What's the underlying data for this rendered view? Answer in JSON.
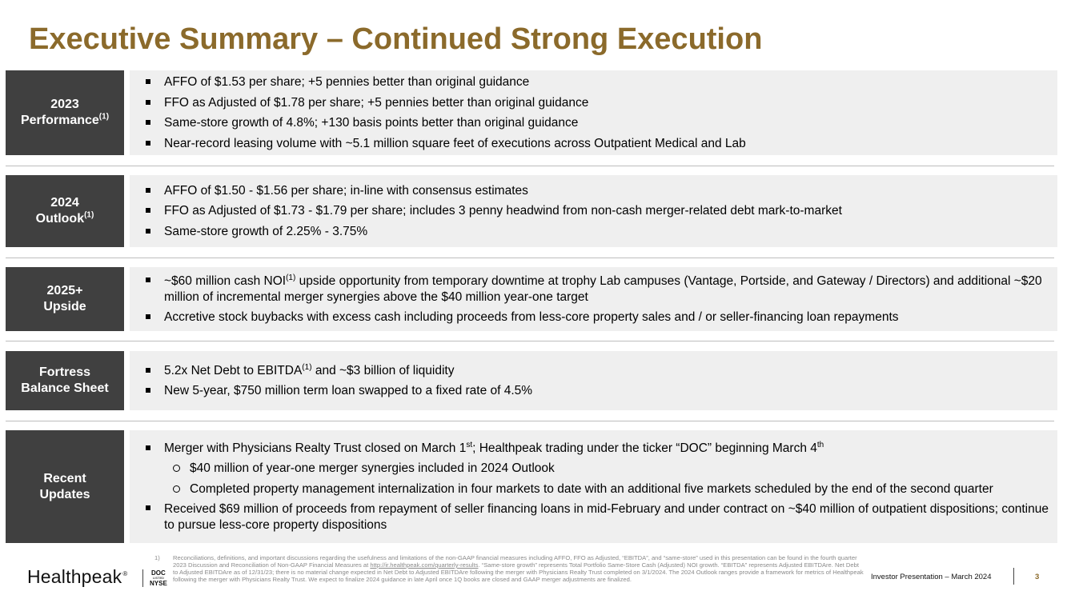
{
  "title": "Executive Summary – Continued Strong Execution",
  "accent_color": "#8b6a2b",
  "label_bg_color": "#404040",
  "content_bg_color": "#efefef",
  "sections": [
    {
      "label_line1": "2023",
      "label_line2": "Performance",
      "label_sup": "(1)",
      "bullets": [
        "AFFO of $1.53 per share; +5 pennies better than original guidance",
        "FFO as Adjusted of $1.78 per share; +5 pennies better than original guidance",
        "Same-store growth of 4.8%; +130 basis points better than original guidance",
        "Near-record leasing volume with ~5.1 million square feet of executions across Outpatient Medical and Lab"
      ]
    },
    {
      "label_line1": "2024",
      "label_line2": "Outlook",
      "label_sup": "(1)",
      "bullets": [
        "AFFO of $1.50 - $1.56 per share; in-line with consensus estimates",
        "FFO as Adjusted of $1.73 - $1.79 per share; includes 3 penny headwind from non-cash merger-related debt mark-to-market",
        "Same-store growth of 2.25% - 3.75%"
      ]
    },
    {
      "label_line1": "2025+",
      "label_line2": "Upside",
      "bullet1_pre": "~$60 million cash NOI",
      "bullet1_sup": "(1)",
      "bullet1_post": " upside opportunity from temporary downtime at trophy Lab campuses (Vantage, Portside, and Gateway / Directors) and additional ~$20 million of incremental merger synergies above the $40 million year-one target",
      "bullet2": " Accretive stock buybacks with excess cash including proceeds from less-core property sales and / or seller-financing loan repayments"
    },
    {
      "label_line1": "Fortress",
      "label_line2": "Balance Sheet",
      "bullet1_pre": "5.2x Net Debt to EBITDA",
      "bullet1_sup": "(1)",
      "bullet1_post": " and ~$3 billion of liquidity",
      "bullet2": "New 5-year, $750 million term loan swapped to a fixed rate of 4.5%"
    },
    {
      "label_line1": "Recent",
      "label_line2": "Updates",
      "bullet1_pre": "Merger with Physicians Realty Trust closed on March 1",
      "bullet1_sup1": "st",
      "bullet1_mid": "; Healthpeak trading under the ticker “DOC” beginning March 4",
      "bullet1_sup2": "th",
      "sub1": "$40 million of year-one merger synergies included in 2024 Outlook",
      "sub2": "Completed property management internalization in four markets to date with an additional five markets scheduled by the end of the second quarter",
      "bullet2": "Received $69 million of proceeds from repayment of seller financing loans in mid-February and under contract on ~$40 million of outpatient dispositions; continue to pursue less-core property dispositions"
    }
  ],
  "footnote": {
    "number": "1)",
    "text_pre": "Reconciliations, definitions, and important discussions regarding the usefulness and limitations of the non-GAAP financial measures including AFFO, FFO as Adjusted, “EBITDA”, and “same-store” used in this presentation can be found in the fourth quarter 2023 Discussion and Reconciliation of Non-GAAP Financial Measures at ",
    "link": "http://ir.healthpeak.com/quarterly-results",
    "text_post": ". “Same-store growth” represents Total Portfolio Same-Store Cash (Adjusted) NOI growth. “EBITDA” represents Adjusted EBITDAre.  Net Debt to Adjusted EBITDAre as of 12/31/23; there is no material change expected in Net Debt to Adjusted EBITDAre following the merger with Physicians Realty Trust completed on 3/1/2024. The 2024 Outlook ranges provide a framework for metrics of Healthpeak following the merger with Physicians Realty Trust. We expect to finalize 2024 guidance in late April once 1Q books are closed and GAAP merger adjustments are finalized."
  },
  "logo": {
    "text": "Healthpeak",
    "reg": "®",
    "ticker_top": "DOC",
    "ticker_mid": "LISTED",
    "ticker_bottom": "NYSE"
  },
  "footer": {
    "presentation": "Investor Presentation – March 2024",
    "page": "3"
  }
}
